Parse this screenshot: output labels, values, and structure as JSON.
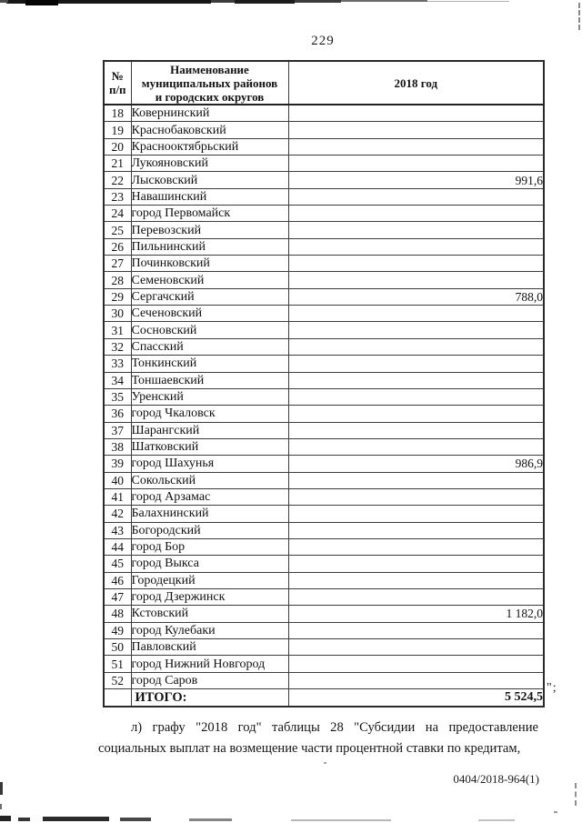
{
  "page": {
    "number": "229",
    "after_table_mark": "\";",
    "paragraph_line1": "л) графу \"2018 год\" таблицы 28 \"Субсидии на предоставление",
    "paragraph_line2": "социальных выплат на возмещение части процентной ставки по кредитам,",
    "doc_code": "0404/2018-964(1)"
  },
  "table": {
    "headers": {
      "num": "№\nп/п",
      "name": "Наименование\nмуниципальных районов\nи городских округов",
      "year": "2018 год"
    },
    "rows": [
      {
        "num": "18",
        "name": "Ковернинский",
        "value": ""
      },
      {
        "num": "19",
        "name": "Краснобаковский",
        "value": ""
      },
      {
        "num": "20",
        "name": "Краснооктябрьский",
        "value": ""
      },
      {
        "num": "21",
        "name": "Лукояновский",
        "value": ""
      },
      {
        "num": "22",
        "name": "Лысковский",
        "value": "991,6"
      },
      {
        "num": "23",
        "name": "Навашинский",
        "value": ""
      },
      {
        "num": "24",
        "name": "город Первомайск",
        "value": ""
      },
      {
        "num": "25",
        "name": "Перевозский",
        "value": ""
      },
      {
        "num": "26",
        "name": "Пильнинский",
        "value": ""
      },
      {
        "num": "27",
        "name": "Починковский",
        "value": ""
      },
      {
        "num": "28",
        "name": "Семеновский",
        "value": ""
      },
      {
        "num": "29",
        "name": "Сергачский",
        "value": "788,0"
      },
      {
        "num": "30",
        "name": "Сеченовский",
        "value": ""
      },
      {
        "num": "31",
        "name": "Сосновский",
        "value": ""
      },
      {
        "num": "32",
        "name": "Спасский",
        "value": ""
      },
      {
        "num": "33",
        "name": "Тонкинский",
        "value": ""
      },
      {
        "num": "34",
        "name": "Тоншаевский",
        "value": ""
      },
      {
        "num": "35",
        "name": "Уренский",
        "value": ""
      },
      {
        "num": "36",
        "name": "город Чкаловск",
        "value": ""
      },
      {
        "num": "37",
        "name": "Шарангский",
        "value": ""
      },
      {
        "num": "38",
        "name": "Шатковский",
        "value": ""
      },
      {
        "num": "39",
        "name": "город Шахунья",
        "value": "986,9"
      },
      {
        "num": "40",
        "name": "Сокольский",
        "value": ""
      },
      {
        "num": "41",
        "name": "город Арзамас",
        "value": ""
      },
      {
        "num": "42",
        "name": "Балахнинский",
        "value": ""
      },
      {
        "num": "43",
        "name": "Богородский",
        "value": ""
      },
      {
        "num": "44",
        "name": "город Бор",
        "value": ""
      },
      {
        "num": "45",
        "name": "город Выкса",
        "value": ""
      },
      {
        "num": "46",
        "name": "Городецкий",
        "value": ""
      },
      {
        "num": "47",
        "name": "город Дзержинск",
        "value": ""
      },
      {
        "num": "48",
        "name": "Кстовский",
        "value": "1 182,0"
      },
      {
        "num": "49",
        "name": "город Кулебаки",
        "value": ""
      },
      {
        "num": "50",
        "name": "Павловский",
        "value": ""
      },
      {
        "num": "51",
        "name": "город Нижний Новгород",
        "value": ""
      },
      {
        "num": "52",
        "name": "город Саров",
        "value": ""
      }
    ],
    "total": {
      "label": "ИТОГО:",
      "value": "5 524,5"
    }
  }
}
